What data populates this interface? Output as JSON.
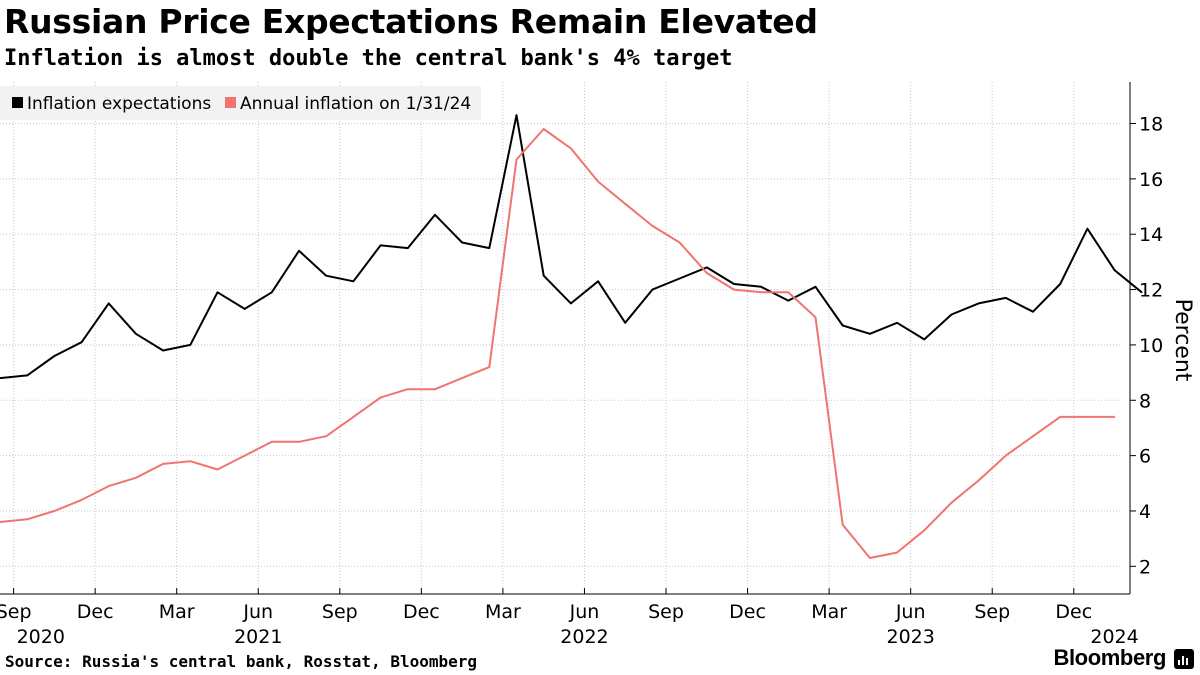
{
  "header": {
    "title": "Russian Price Expectations Remain Elevated",
    "subtitle": "Inflation is almost double the central bank's 4% target"
  },
  "footer": {
    "source": "Source: Russia's central bank, Rosstat, Bloomberg",
    "brand": "Bloomberg"
  },
  "chart_data": {
    "type": "line",
    "title": "Russian Price Expectations Remain Elevated",
    "subtitle": "Inflation is almost double the central bank's 4% target",
    "ylabel": "Percent",
    "xlabel": "",
    "ylim": [
      1,
      19.5
    ],
    "yticks": [
      2,
      4,
      6,
      8,
      10,
      12,
      14,
      16,
      18
    ],
    "grid": true,
    "legend": "top-left",
    "x_domain": [
      0.5,
      41.7
    ],
    "x_ticks": [
      {
        "label": "Sep",
        "x": 1
      },
      {
        "label": "Dec",
        "x": 4
      },
      {
        "label": "Mar",
        "x": 7
      },
      {
        "label": "Jun",
        "x": 10
      },
      {
        "label": "Sep",
        "x": 13
      },
      {
        "label": "Dec",
        "x": 16
      },
      {
        "label": "Mar",
        "x": 19
      },
      {
        "label": "Jun",
        "x": 22
      },
      {
        "label": "Sep",
        "x": 25
      },
      {
        "label": "Dec",
        "x": 28
      },
      {
        "label": "Mar",
        "x": 31
      },
      {
        "label": "Jun",
        "x": 34
      },
      {
        "label": "Sep",
        "x": 37
      },
      {
        "label": "Dec",
        "x": 40
      }
    ],
    "year_labels": [
      {
        "label": "2020",
        "x": 2
      },
      {
        "label": "2021",
        "x": 10
      },
      {
        "label": "2022",
        "x": 22
      },
      {
        "label": "2023",
        "x": 34
      },
      {
        "label": "2024",
        "x": 41.5
      }
    ],
    "series": [
      {
        "name": "Inflation expectations",
        "color": "#000000",
        "start_x": 0.5,
        "values": [
          8.8,
          8.9,
          9.6,
          10.1,
          11.5,
          10.4,
          9.8,
          10.0,
          11.9,
          11.3,
          11.9,
          13.4,
          12.5,
          12.3,
          13.6,
          13.5,
          14.7,
          13.7,
          13.5,
          18.3,
          12.5,
          11.5,
          12.3,
          10.8,
          12.0,
          12.4,
          12.8,
          12.2,
          12.1,
          11.6,
          12.1,
          10.7,
          10.4,
          10.8,
          10.2,
          11.1,
          11.5,
          11.7,
          11.2,
          12.2,
          14.2,
          12.7,
          11.9
        ]
      },
      {
        "name": "Annual inflation on 1/31/24",
        "color": "#f07470",
        "start_x": 0.5,
        "values": [
          3.6,
          3.7,
          4.0,
          4.4,
          4.9,
          5.2,
          5.7,
          5.8,
          5.5,
          6.0,
          6.5,
          6.5,
          6.7,
          7.4,
          8.1,
          8.4,
          8.4,
          8.8,
          9.2,
          16.7,
          17.8,
          17.1,
          15.9,
          15.1,
          14.3,
          13.7,
          12.6,
          12.0,
          11.9,
          11.9,
          11.0,
          3.5,
          2.3,
          2.5,
          3.3,
          4.3,
          5.1,
          6.0,
          6.7,
          7.4,
          7.4,
          7.4
        ]
      }
    ]
  }
}
